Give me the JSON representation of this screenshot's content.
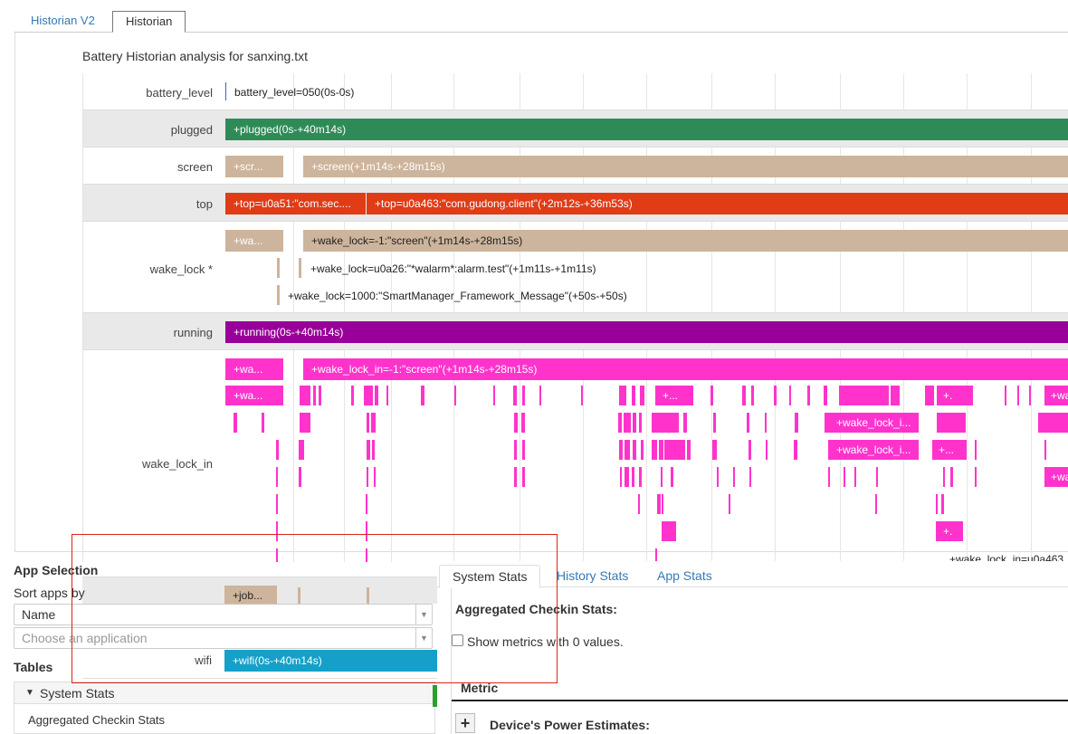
{
  "tabs": [
    {
      "label": "Historian V2",
      "active": false
    },
    {
      "label": "Historian",
      "active": true
    }
  ],
  "analysis_title": "Battery Historian analysis for sanxing.txt",
  "timeline": {
    "battery_level": {
      "label": "battery_level",
      "text": "battery_level=050(0s-0s)"
    },
    "plugged": {
      "label": "plugged",
      "bar": "+plugged(0s-+40m14s)",
      "color": "#2e8b57"
    },
    "screen": {
      "label": "screen",
      "bar_short": "+scr...",
      "bar": "+screen(+1m14s-+28m15s)",
      "color": "#cdb49c"
    },
    "top": {
      "label": "top",
      "bar_short": "+top=u0a51:\"com.sec....",
      "bar": "+top=u0a463:\"com.gudong.client\"(+2m12s-+36m53s)",
      "color": "#e03c16"
    },
    "wake_lock": {
      "label": "wake_lock *",
      "bar_short": "+wa...",
      "bar": "+wake_lock=-1:\"screen\"(+1m14s-+28m15s)",
      "line2": "+wake_lock=u0a26:\"*walarm*:alarm.test\"(+1m11s-+1m11s)",
      "line3": "+wake_lock=1000:\"SmartManager_Framework_Message\"(+50s-+50s)"
    },
    "running": {
      "label": "running",
      "bar": "+running(0s-+40m14s)",
      "color": "#990099"
    },
    "wake_lock_in": {
      "label": "wake_lock_in",
      "bar_short": "+wa...",
      "bar": "+wake_lock_in=-1:\"screen\"(+1m14s-+28m15s)",
      "bar_short2": "+wa...",
      "seg_a": "+...",
      "seg_b": "+.",
      "seg_c": "+wa",
      "seg_d": "+wake_lock_i...",
      "seg_e": "+wake_lock_i...",
      "seg_f": "+...",
      "seg_g": "+wa",
      "seg_h": "+.",
      "seg_i": "+wake_lock_in=u0a463",
      "color": "#ff33cc"
    },
    "job": {
      "bar_short": "+job..."
    },
    "wifi": {
      "label": "wifi",
      "bar": "+wifi(0s-+40m14s)",
      "color": "#14a0c8"
    }
  },
  "sidebar": {
    "app_selection": "App Selection",
    "sort_label": "Sort apps by",
    "sort_value": "Name",
    "choose_placeholder": "Choose an application",
    "tables_heading": "Tables",
    "tables_section": "System Stats",
    "tables_item": "Aggregated Checkin Stats"
  },
  "stats": {
    "tabs": [
      {
        "label": "System Stats",
        "active": true
      },
      {
        "label": "History Stats",
        "active": false
      },
      {
        "label": "App Stats",
        "active": false
      }
    ],
    "heading": "Aggregated Checkin Stats:",
    "checkbox_label": "Show metrics with 0 values.",
    "metric_header": "Metric",
    "row1": "Device's Power Estimates:"
  }
}
